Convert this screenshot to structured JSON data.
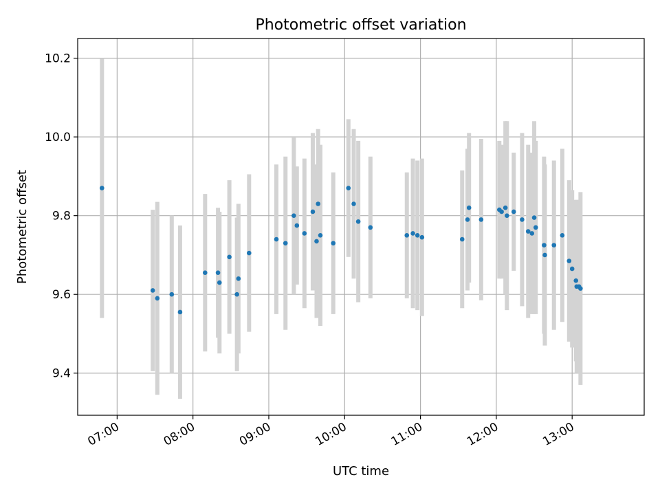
{
  "chart_data": {
    "type": "scatter",
    "title": "Photometric offset variation",
    "xlabel": "UTC time",
    "ylabel": "Photometric offset",
    "x_unit": "UTC hours",
    "xlim": [
      6.48,
      13.95
    ],
    "ylim": [
      9.293,
      10.25
    ],
    "x_ticks": [
      {
        "value": 7,
        "label": "07:00"
      },
      {
        "value": 8,
        "label": "08:00"
      },
      {
        "value": 9,
        "label": "09:00"
      },
      {
        "value": 10,
        "label": "10:00"
      },
      {
        "value": 11,
        "label": "11:00"
      },
      {
        "value": 12,
        "label": "12:00"
      },
      {
        "value": 13,
        "label": "13:00"
      }
    ],
    "y_ticks": [
      {
        "value": 9.4,
        "label": "9.4"
      },
      {
        "value": 9.6,
        "label": "9.6"
      },
      {
        "value": 9.8,
        "label": "9.8"
      },
      {
        "value": 10.0,
        "label": "10.0"
      },
      {
        "value": 10.2,
        "label": "10.2"
      }
    ],
    "grid": true,
    "colors": {
      "point": "#1f77b4",
      "error_bar": "#d3d3d3"
    },
    "series": [
      {
        "x": [
          6.8,
          7.47,
          7.53,
          7.72,
          7.83,
          8.16,
          8.33,
          8.35,
          8.48,
          8.58,
          8.6,
          8.74,
          9.1,
          9.22,
          9.33,
          9.37,
          9.47,
          9.58,
          9.63,
          9.65,
          9.68,
          9.85,
          10.05,
          10.12,
          10.18,
          10.34,
          10.82,
          10.9,
          10.96,
          11.02,
          11.55,
          11.62,
          11.64,
          11.8,
          12.04,
          12.07,
          12.12,
          12.14,
          12.23,
          12.34,
          12.42,
          12.47,
          12.5,
          12.52,
          12.63,
          12.64,
          12.76,
          12.87,
          12.96,
          13.0,
          13.05,
          13.06,
          13.09,
          13.11
        ],
        "y": [
          9.87,
          9.61,
          9.59,
          9.6,
          9.555,
          9.655,
          9.655,
          9.63,
          9.695,
          9.6,
          9.64,
          9.705,
          9.74,
          9.73,
          9.8,
          9.775,
          9.755,
          9.81,
          9.735,
          9.83,
          9.75,
          9.73,
          9.87,
          9.83,
          9.785,
          9.77,
          9.75,
          9.755,
          9.75,
          9.745,
          9.74,
          9.79,
          9.82,
          9.79,
          9.815,
          9.81,
          9.82,
          9.8,
          9.81,
          9.79,
          9.76,
          9.755,
          9.795,
          9.77,
          9.725,
          9.7,
          9.725,
          9.75,
          9.685,
          9.665,
          9.635,
          9.62,
          9.62,
          9.615
        ],
        "err": [
          0.33,
          0.205,
          0.245,
          0.2,
          0.22,
          0.2,
          0.165,
          0.18,
          0.195,
          0.195,
          0.19,
          0.2,
          0.19,
          0.22,
          0.2,
          0.15,
          0.19,
          0.2,
          0.195,
          0.19,
          0.23,
          0.18,
          0.175,
          0.19,
          0.205,
          0.18,
          0.16,
          0.19,
          0.19,
          0.2,
          0.175,
          0.18,
          0.19,
          0.205,
          0.175,
          0.17,
          0.22,
          0.24,
          0.15,
          0.22,
          0.22,
          0.205,
          0.245,
          0.22,
          0.225,
          0.23,
          0.215,
          0.22,
          0.205,
          0.2,
          0.205,
          0.22,
          0.22,
          0.245
        ]
      }
    ]
  }
}
